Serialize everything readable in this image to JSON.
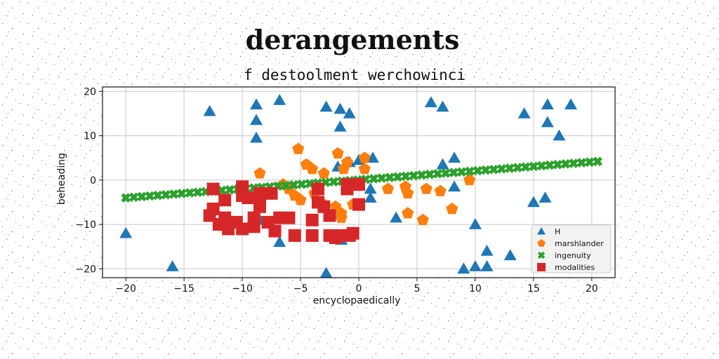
{
  "chart_data": {
    "type": "scatter",
    "title": "derangements",
    "subtitle": "f destoolment werchowinci",
    "xlabel": "encyclopaedically",
    "ylabel": "beheading",
    "xlim": [
      -22,
      22
    ],
    "ylim": [
      -22,
      21
    ],
    "xticks": [
      -20,
      -15,
      -10,
      -5,
      0,
      5,
      10,
      15,
      20
    ],
    "yticks": [
      -20,
      -10,
      0,
      10,
      20
    ],
    "grid": true,
    "legend_position": "lower-right",
    "series": [
      {
        "name": "H",
        "marker": "triangle",
        "color": "#1f77b4",
        "points": [
          [
            -20,
            -12
          ],
          [
            -16,
            -19.5
          ],
          [
            -12.8,
            15.5
          ],
          [
            -8.8,
            17
          ],
          [
            -8.8,
            13.5
          ],
          [
            -8.8,
            9.5
          ],
          [
            -6.8,
            18
          ],
          [
            -2.8,
            16.5
          ],
          [
            -1.6,
            16
          ],
          [
            -1.6,
            12
          ],
          [
            -0.8,
            15
          ],
          [
            -1.8,
            3
          ],
          [
            -0.8,
            4
          ],
          [
            0,
            4.5
          ],
          [
            1.2,
            5
          ],
          [
            1,
            -2
          ],
          [
            1,
            -4
          ],
          [
            -1.5,
            -13.5
          ],
          [
            -2.8,
            -21
          ],
          [
            -6.8,
            -14
          ],
          [
            -8.5,
            -9
          ],
          [
            3.2,
            -8.5
          ],
          [
            6.2,
            17.5
          ],
          [
            7.2,
            16.5
          ],
          [
            7.2,
            3.5
          ],
          [
            8.2,
            5
          ],
          [
            8.2,
            -1.5
          ],
          [
            10,
            -10
          ],
          [
            9,
            -20
          ],
          [
            10,
            -19.5
          ],
          [
            11,
            -16
          ],
          [
            11,
            -19.5
          ],
          [
            13,
            -17
          ],
          [
            14.2,
            15
          ],
          [
            16.2,
            17
          ],
          [
            16.2,
            13
          ],
          [
            17.2,
            10
          ],
          [
            18.2,
            17
          ],
          [
            15,
            -5
          ],
          [
            16,
            -4
          ],
          [
            16.2,
            -12
          ]
        ]
      },
      {
        "name": "marshlander",
        "marker": "pentagon",
        "color": "#ff7f0e",
        "points": [
          [
            -8.5,
            1.5
          ],
          [
            -6.5,
            -1
          ],
          [
            -5.2,
            7
          ],
          [
            -4.5,
            3.5
          ],
          [
            -4,
            2.5
          ],
          [
            -3,
            1.5
          ],
          [
            -1.8,
            6
          ],
          [
            -1,
            4
          ],
          [
            -1.3,
            2.5
          ],
          [
            0.5,
            5
          ],
          [
            0.5,
            2.5
          ],
          [
            -6,
            -2
          ],
          [
            -5.5,
            -3.5
          ],
          [
            -5,
            -4.5
          ],
          [
            -3.8,
            -3
          ],
          [
            -3,
            -5.5
          ],
          [
            -2,
            -6
          ],
          [
            -1.5,
            -8.5
          ],
          [
            -1.5,
            -7.5
          ],
          [
            -0.5,
            -5.5
          ],
          [
            0,
            -5.5
          ],
          [
            2.5,
            -2
          ],
          [
            4,
            -1.5
          ],
          [
            4.2,
            -3
          ],
          [
            4.2,
            -7.5
          ],
          [
            5.5,
            -9
          ],
          [
            5.8,
            -2
          ],
          [
            7,
            -2.5
          ],
          [
            8,
            -6.5
          ],
          [
            9.5,
            0
          ]
        ]
      },
      {
        "name": "ingenuity",
        "marker": "x",
        "color": "#2ca02c",
        "line": {
          "x_start": -20,
          "y_start": -4,
          "x_end": 20.5,
          "y_end": 4.2,
          "count": 60
        }
      },
      {
        "name": "modalities",
        "marker": "square",
        "color": "#d62728",
        "points": [
          [
            -12.5,
            -2
          ],
          [
            -11.5,
            -4.5
          ],
          [
            -10,
            -1.5
          ],
          [
            -10,
            -3.5
          ],
          [
            -12.8,
            -8
          ],
          [
            -12.5,
            -6.5
          ],
          [
            -11.5,
            -8.5
          ],
          [
            -12,
            -10
          ],
          [
            -11.2,
            -11
          ],
          [
            -10.5,
            -9.5
          ],
          [
            -10,
            -11
          ],
          [
            -9,
            -8.5
          ],
          [
            -9,
            -10.5
          ],
          [
            -8.5,
            -6
          ],
          [
            -8.5,
            -4
          ],
          [
            -7.8,
            -9.5
          ],
          [
            -7.2,
            -11.5
          ],
          [
            -6.8,
            -8.5
          ],
          [
            -6,
            -8.5
          ],
          [
            -5.5,
            -12.5
          ],
          [
            -4,
            -12.5
          ],
          [
            -4,
            -9
          ],
          [
            -3.5,
            -5
          ],
          [
            -3,
            -6
          ],
          [
            -2.5,
            -8
          ],
          [
            -2.5,
            -12.5
          ],
          [
            -2,
            -13
          ],
          [
            -1.5,
            -12.5
          ],
          [
            -0.8,
            -12.5
          ],
          [
            -3.5,
            -2
          ],
          [
            -1,
            -2
          ],
          [
            -1,
            -1
          ],
          [
            0,
            -1
          ],
          [
            0,
            -5.5
          ],
          [
            -0.5,
            -12
          ],
          [
            -7.5,
            -3
          ],
          [
            -8.5,
            -3
          ],
          [
            -9.5,
            -4
          ]
        ]
      }
    ]
  }
}
